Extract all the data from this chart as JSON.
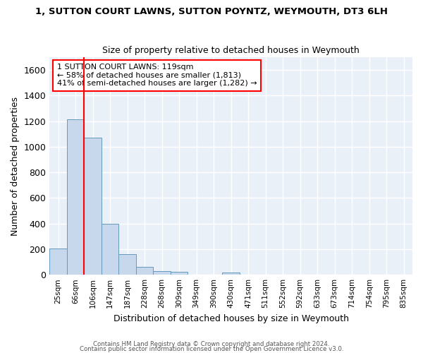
{
  "title": "1, SUTTON COURT LAWNS, SUTTON POYNTZ, WEYMOUTH, DT3 6LH",
  "subtitle": "Size of property relative to detached houses in Weymouth",
  "xlabel": "Distribution of detached houses by size in Weymouth",
  "ylabel": "Number of detached properties",
  "categories": [
    "25sqm",
    "66sqm",
    "106sqm",
    "147sqm",
    "187sqm",
    "228sqm",
    "268sqm",
    "309sqm",
    "349sqm",
    "390sqm",
    "430sqm",
    "471sqm",
    "511sqm",
    "552sqm",
    "592sqm",
    "633sqm",
    "673sqm",
    "714sqm",
    "754sqm",
    "795sqm",
    "835sqm"
  ],
  "values": [
    205,
    1215,
    1070,
    400,
    160,
    60,
    30,
    25,
    0,
    0,
    20,
    0,
    0,
    0,
    0,
    0,
    0,
    0,
    0,
    0,
    0
  ],
  "bar_color": "#c8d8ec",
  "bar_edge_color": "#6699bb",
  "red_line_x": 2,
  "annotation_text": "1 SUTTON COURT LAWNS: 119sqm\n← 58% of detached houses are smaller (1,813)\n41% of semi-detached houses are larger (1,282) →",
  "annotation_box_color": "white",
  "annotation_box_edge_color": "red",
  "ylim": [
    0,
    1700
  ],
  "yticks": [
    0,
    200,
    400,
    600,
    800,
    1000,
    1200,
    1400,
    1600
  ],
  "bg_color": "#eaf0f8",
  "grid_color": "white",
  "footer1": "Contains HM Land Registry data © Crown copyright and database right 2024.",
  "footer2": "Contains public sector information licensed under the Open Government Licence v3.0."
}
